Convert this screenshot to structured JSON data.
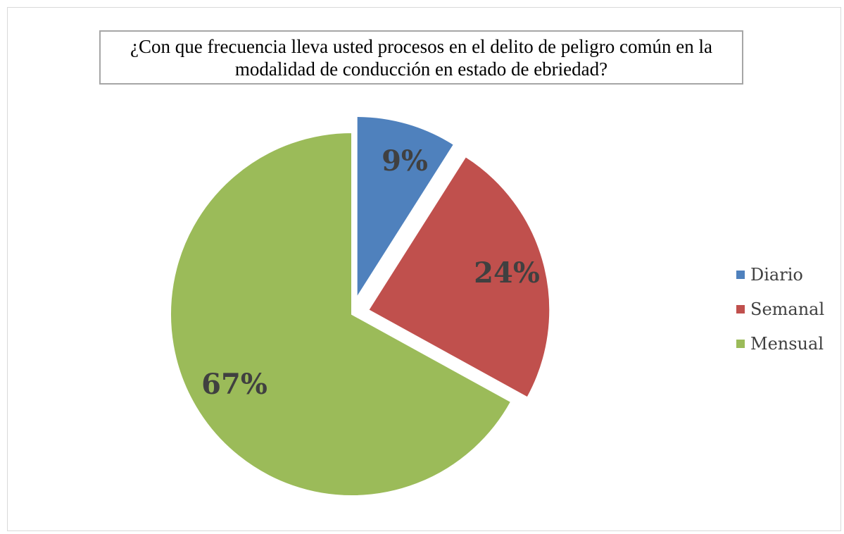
{
  "chart_data": {
    "type": "pie",
    "title": "¿Con que frecuencia lleva usted procesos en el delito de peligro común en la modalidad de conducción en estado de ebriedad?",
    "categories": [
      "Diario",
      "Semanal",
      "Mensual"
    ],
    "values": [
      9,
      24,
      67
    ],
    "data_labels": [
      "9%",
      "24%",
      "67%"
    ],
    "colors": [
      "#4f81bd",
      "#c0504d",
      "#9bbb59"
    ],
    "exploded": [
      true,
      true,
      false
    ],
    "legend_position": "right"
  }
}
